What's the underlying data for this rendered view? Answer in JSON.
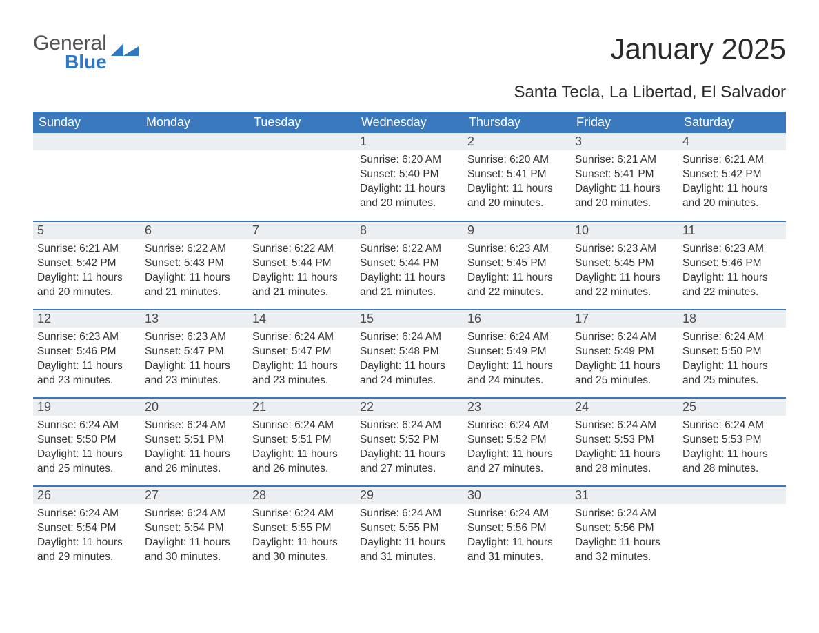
{
  "logo": {
    "word1": "General",
    "word2": "Blue",
    "accent_color": "#2f78c4",
    "text_color": "#535353"
  },
  "header": {
    "month_title": "January 2025",
    "location": "Santa Tecla, La Libertad, El Salvador"
  },
  "colors": {
    "header_bg": "#3a79bd",
    "header_text": "#ffffff",
    "daynum_bg": "#eceff1",
    "rule": "#3a79bd",
    "body_text": "#333333",
    "page_bg": "#ffffff"
  },
  "day_headers": [
    "Sunday",
    "Monday",
    "Tuesday",
    "Wednesday",
    "Thursday",
    "Friday",
    "Saturday"
  ],
  "weeks": [
    [
      null,
      null,
      null,
      {
        "n": "1",
        "sr": "Sunrise: 6:20 AM",
        "ss": "Sunset: 5:40 PM",
        "dl1": "Daylight: 11 hours",
        "dl2": "and 20 minutes."
      },
      {
        "n": "2",
        "sr": "Sunrise: 6:20 AM",
        "ss": "Sunset: 5:41 PM",
        "dl1": "Daylight: 11 hours",
        "dl2": "and 20 minutes."
      },
      {
        "n": "3",
        "sr": "Sunrise: 6:21 AM",
        "ss": "Sunset: 5:41 PM",
        "dl1": "Daylight: 11 hours",
        "dl2": "and 20 minutes."
      },
      {
        "n": "4",
        "sr": "Sunrise: 6:21 AM",
        "ss": "Sunset: 5:42 PM",
        "dl1": "Daylight: 11 hours",
        "dl2": "and 20 minutes."
      }
    ],
    [
      {
        "n": "5",
        "sr": "Sunrise: 6:21 AM",
        "ss": "Sunset: 5:42 PM",
        "dl1": "Daylight: 11 hours",
        "dl2": "and 20 minutes."
      },
      {
        "n": "6",
        "sr": "Sunrise: 6:22 AM",
        "ss": "Sunset: 5:43 PM",
        "dl1": "Daylight: 11 hours",
        "dl2": "and 21 minutes."
      },
      {
        "n": "7",
        "sr": "Sunrise: 6:22 AM",
        "ss": "Sunset: 5:44 PM",
        "dl1": "Daylight: 11 hours",
        "dl2": "and 21 minutes."
      },
      {
        "n": "8",
        "sr": "Sunrise: 6:22 AM",
        "ss": "Sunset: 5:44 PM",
        "dl1": "Daylight: 11 hours",
        "dl2": "and 21 minutes."
      },
      {
        "n": "9",
        "sr": "Sunrise: 6:23 AM",
        "ss": "Sunset: 5:45 PM",
        "dl1": "Daylight: 11 hours",
        "dl2": "and 22 minutes."
      },
      {
        "n": "10",
        "sr": "Sunrise: 6:23 AM",
        "ss": "Sunset: 5:45 PM",
        "dl1": "Daylight: 11 hours",
        "dl2": "and 22 minutes."
      },
      {
        "n": "11",
        "sr": "Sunrise: 6:23 AM",
        "ss": "Sunset: 5:46 PM",
        "dl1": "Daylight: 11 hours",
        "dl2": "and 22 minutes."
      }
    ],
    [
      {
        "n": "12",
        "sr": "Sunrise: 6:23 AM",
        "ss": "Sunset: 5:46 PM",
        "dl1": "Daylight: 11 hours",
        "dl2": "and 23 minutes."
      },
      {
        "n": "13",
        "sr": "Sunrise: 6:23 AM",
        "ss": "Sunset: 5:47 PM",
        "dl1": "Daylight: 11 hours",
        "dl2": "and 23 minutes."
      },
      {
        "n": "14",
        "sr": "Sunrise: 6:24 AM",
        "ss": "Sunset: 5:47 PM",
        "dl1": "Daylight: 11 hours",
        "dl2": "and 23 minutes."
      },
      {
        "n": "15",
        "sr": "Sunrise: 6:24 AM",
        "ss": "Sunset: 5:48 PM",
        "dl1": "Daylight: 11 hours",
        "dl2": "and 24 minutes."
      },
      {
        "n": "16",
        "sr": "Sunrise: 6:24 AM",
        "ss": "Sunset: 5:49 PM",
        "dl1": "Daylight: 11 hours",
        "dl2": "and 24 minutes."
      },
      {
        "n": "17",
        "sr": "Sunrise: 6:24 AM",
        "ss": "Sunset: 5:49 PM",
        "dl1": "Daylight: 11 hours",
        "dl2": "and 25 minutes."
      },
      {
        "n": "18",
        "sr": "Sunrise: 6:24 AM",
        "ss": "Sunset: 5:50 PM",
        "dl1": "Daylight: 11 hours",
        "dl2": "and 25 minutes."
      }
    ],
    [
      {
        "n": "19",
        "sr": "Sunrise: 6:24 AM",
        "ss": "Sunset: 5:50 PM",
        "dl1": "Daylight: 11 hours",
        "dl2": "and 25 minutes."
      },
      {
        "n": "20",
        "sr": "Sunrise: 6:24 AM",
        "ss": "Sunset: 5:51 PM",
        "dl1": "Daylight: 11 hours",
        "dl2": "and 26 minutes."
      },
      {
        "n": "21",
        "sr": "Sunrise: 6:24 AM",
        "ss": "Sunset: 5:51 PM",
        "dl1": "Daylight: 11 hours",
        "dl2": "and 26 minutes."
      },
      {
        "n": "22",
        "sr": "Sunrise: 6:24 AM",
        "ss": "Sunset: 5:52 PM",
        "dl1": "Daylight: 11 hours",
        "dl2": "and 27 minutes."
      },
      {
        "n": "23",
        "sr": "Sunrise: 6:24 AM",
        "ss": "Sunset: 5:52 PM",
        "dl1": "Daylight: 11 hours",
        "dl2": "and 27 minutes."
      },
      {
        "n": "24",
        "sr": "Sunrise: 6:24 AM",
        "ss": "Sunset: 5:53 PM",
        "dl1": "Daylight: 11 hours",
        "dl2": "and 28 minutes."
      },
      {
        "n": "25",
        "sr": "Sunrise: 6:24 AM",
        "ss": "Sunset: 5:53 PM",
        "dl1": "Daylight: 11 hours",
        "dl2": "and 28 minutes."
      }
    ],
    [
      {
        "n": "26",
        "sr": "Sunrise: 6:24 AM",
        "ss": "Sunset: 5:54 PM",
        "dl1": "Daylight: 11 hours",
        "dl2": "and 29 minutes."
      },
      {
        "n": "27",
        "sr": "Sunrise: 6:24 AM",
        "ss": "Sunset: 5:54 PM",
        "dl1": "Daylight: 11 hours",
        "dl2": "and 30 minutes."
      },
      {
        "n": "28",
        "sr": "Sunrise: 6:24 AM",
        "ss": "Sunset: 5:55 PM",
        "dl1": "Daylight: 11 hours",
        "dl2": "and 30 minutes."
      },
      {
        "n": "29",
        "sr": "Sunrise: 6:24 AM",
        "ss": "Sunset: 5:55 PM",
        "dl1": "Daylight: 11 hours",
        "dl2": "and 31 minutes."
      },
      {
        "n": "30",
        "sr": "Sunrise: 6:24 AM",
        "ss": "Sunset: 5:56 PM",
        "dl1": "Daylight: 11 hours",
        "dl2": "and 31 minutes."
      },
      {
        "n": "31",
        "sr": "Sunrise: 6:24 AM",
        "ss": "Sunset: 5:56 PM",
        "dl1": "Daylight: 11 hours",
        "dl2": "and 32 minutes."
      },
      null
    ]
  ]
}
